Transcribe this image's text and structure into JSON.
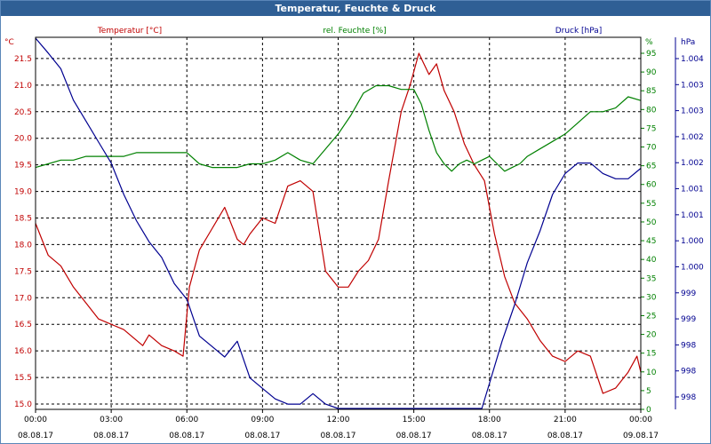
{
  "window": {
    "title": "Temperatur, Feuchte & Druck"
  },
  "colors": {
    "temperature": "#c00000",
    "humidity": "#008000",
    "pressure": "#000090",
    "grid": "#000000",
    "titlebar": "#2f5f95"
  },
  "chart_data": {
    "type": "line",
    "title": "Temperatur, Feuchte & Druck",
    "x_ticks": [
      {
        "time": "00:00",
        "date": "08.08.17"
      },
      {
        "time": "03:00",
        "date": "08.08.17"
      },
      {
        "time": "06:00",
        "date": "08.08.17"
      },
      {
        "time": "09:00",
        "date": "08.08.17"
      },
      {
        "time": "12:00",
        "date": "08.08.17"
      },
      {
        "time": "15:00",
        "date": "08.08.17"
      },
      {
        "time": "18:00",
        "date": "08.08.17"
      },
      {
        "time": "21:00",
        "date": "08.08.17"
      },
      {
        "time": "00:00",
        "date": "09.08.17"
      }
    ],
    "grid": true,
    "axes": {
      "temperature": {
        "label": "Temperatur [°C]",
        "unit": "°C",
        "side": "left",
        "ylim": [
          15.0,
          22.0
        ],
        "ticks": [
          "15.0",
          "15.5",
          "16.0",
          "16.5",
          "17.0",
          "17.5",
          "18.0",
          "18.5",
          "19.0",
          "19.5",
          "20.0",
          "20.5",
          "21.0",
          "21.5"
        ]
      },
      "humidity": {
        "label": "rel. Feuchte [%]",
        "unit": "%",
        "side": "right",
        "ylim": [
          0,
          100
        ],
        "ticks": [
          "0",
          "5",
          "10",
          "15",
          "20",
          "25",
          "30",
          "35",
          "40",
          "45",
          "50",
          "55",
          "60",
          "65",
          "70",
          "75",
          "80",
          "85",
          "90",
          "95"
        ]
      },
      "pressure": {
        "label": "Druck [hPa]",
        "unit": "hPa",
        "side": "far-right",
        "ylim": [
          997.5,
          1004.6
        ],
        "ticks": [
          "998",
          "998",
          "998",
          "999",
          "999",
          "1.000",
          "1.000",
          "1.001",
          "1.001",
          "1.002",
          "1.002",
          "1.003",
          "1.003",
          "1.004"
        ]
      }
    },
    "series": [
      {
        "name": "Temperatur [°C]",
        "axis": "temperature",
        "x": [
          0,
          0.25,
          0.5,
          1,
          1.5,
          2,
          2.5,
          3,
          3.5,
          4,
          4.25,
          4.5,
          5,
          5.5,
          5.85,
          6.1,
          6.5,
          7,
          7.5,
          8,
          8.25,
          8.5,
          9,
          9.5,
          10,
          10.5,
          11,
          11.5,
          12,
          12.4,
          12.8,
          13.2,
          13.6,
          14,
          14.5,
          14.85,
          15.2,
          15.6,
          15.9,
          16.2,
          16.6,
          17,
          17.4,
          17.8,
          18.2,
          18.6,
          19,
          19.5,
          20,
          20.5,
          21,
          21.5,
          22,
          22.5,
          23,
          23.5,
          23.85,
          24
        ],
        "values": [
          18.5,
          18.2,
          17.9,
          17.7,
          17.3,
          17.0,
          16.7,
          16.6,
          16.5,
          16.3,
          16.2,
          16.4,
          16.2,
          16.1,
          16.0,
          17.3,
          18.0,
          18.4,
          18.8,
          18.2,
          18.1,
          18.3,
          18.6,
          18.5,
          19.2,
          19.3,
          19.1,
          17.6,
          17.3,
          17.3,
          17.6,
          17.8,
          18.2,
          19.3,
          20.6,
          21.1,
          21.7,
          21.3,
          21.5,
          21.0,
          20.6,
          20.0,
          19.6,
          19.3,
          18.3,
          17.5,
          17.0,
          16.7,
          16.3,
          16.0,
          15.9,
          16.1,
          16.0,
          15.3,
          15.4,
          15.7,
          16.0,
          15.7
        ]
      },
      {
        "name": "rel. Feuchte [%]",
        "axis": "humidity",
        "x": [
          0,
          0.5,
          1,
          1.5,
          2,
          2.5,
          3,
          3.5,
          4,
          4.5,
          5,
          5.5,
          6,
          6.5,
          7,
          7.5,
          8,
          8.5,
          9,
          9.5,
          10,
          10.5,
          11,
          11.5,
          12,
          12.5,
          13,
          13.5,
          14,
          14.5,
          15,
          15.3,
          15.6,
          15.9,
          16.2,
          16.5,
          16.8,
          17.1,
          17.4,
          17.7,
          18,
          18.3,
          18.6,
          18.9,
          19.2,
          19.5,
          20,
          20.5,
          21,
          21.5,
          22,
          22.5,
          23,
          23.5,
          24
        ],
        "values": [
          65,
          66,
          67,
          67,
          68,
          68,
          68,
          68,
          69,
          69,
          69,
          69,
          69,
          66,
          65,
          65,
          65,
          66,
          66,
          67,
          69,
          67,
          66,
          70,
          74,
          79,
          85,
          87,
          87,
          86,
          86,
          82,
          75,
          69,
          66,
          64,
          66,
          67,
          66,
          67,
          68,
          66,
          64,
          65,
          66,
          68,
          70,
          72,
          74,
          77,
          80,
          80,
          81,
          84,
          83
        ]
      },
      {
        "name": "Druck [hPa]",
        "axis": "pressure",
        "x": [
          0,
          0.5,
          1,
          1.5,
          2,
          2.5,
          3,
          3.5,
          4,
          4.5,
          5,
          5.5,
          6,
          6.5,
          7,
          7.5,
          8,
          8.5,
          9,
          9.5,
          10,
          10.5,
          11,
          11.5,
          12,
          12.5,
          13,
          13.5,
          14,
          14.5,
          15,
          15.3,
          15.6,
          15.9,
          16.2,
          16.5,
          16.8,
          17.1,
          17.4,
          17.7,
          18,
          18.5,
          19,
          19.5,
          20,
          20.5,
          21,
          21.5,
          22,
          22.5,
          23,
          23.5,
          24
        ],
        "values": [
          1004.6,
          1004.3,
          1004.0,
          1003.4,
          1003.0,
          1002.6,
          1002.2,
          1001.6,
          1001.1,
          1000.7,
          1000.4,
          999.9,
          999.6,
          998.9,
          998.7,
          998.5,
          998.8,
          998.1,
          997.9,
          997.7,
          997.6,
          997.6,
          997.8,
          997.6,
          997.5,
          997.3,
          997.4,
          997.2,
          997.2,
          997.3,
          997.1,
          996.9,
          996.8,
          996.7,
          996.6,
          996.5,
          996.6,
          996.6,
          997.0,
          997.5,
          998.0,
          998.8,
          999.5,
          1000.3,
          1000.9,
          1001.6,
          1002.0,
          1002.2,
          1002.2,
          1002.0,
          1001.9,
          1001.9,
          1002.1
        ]
      }
    ]
  }
}
